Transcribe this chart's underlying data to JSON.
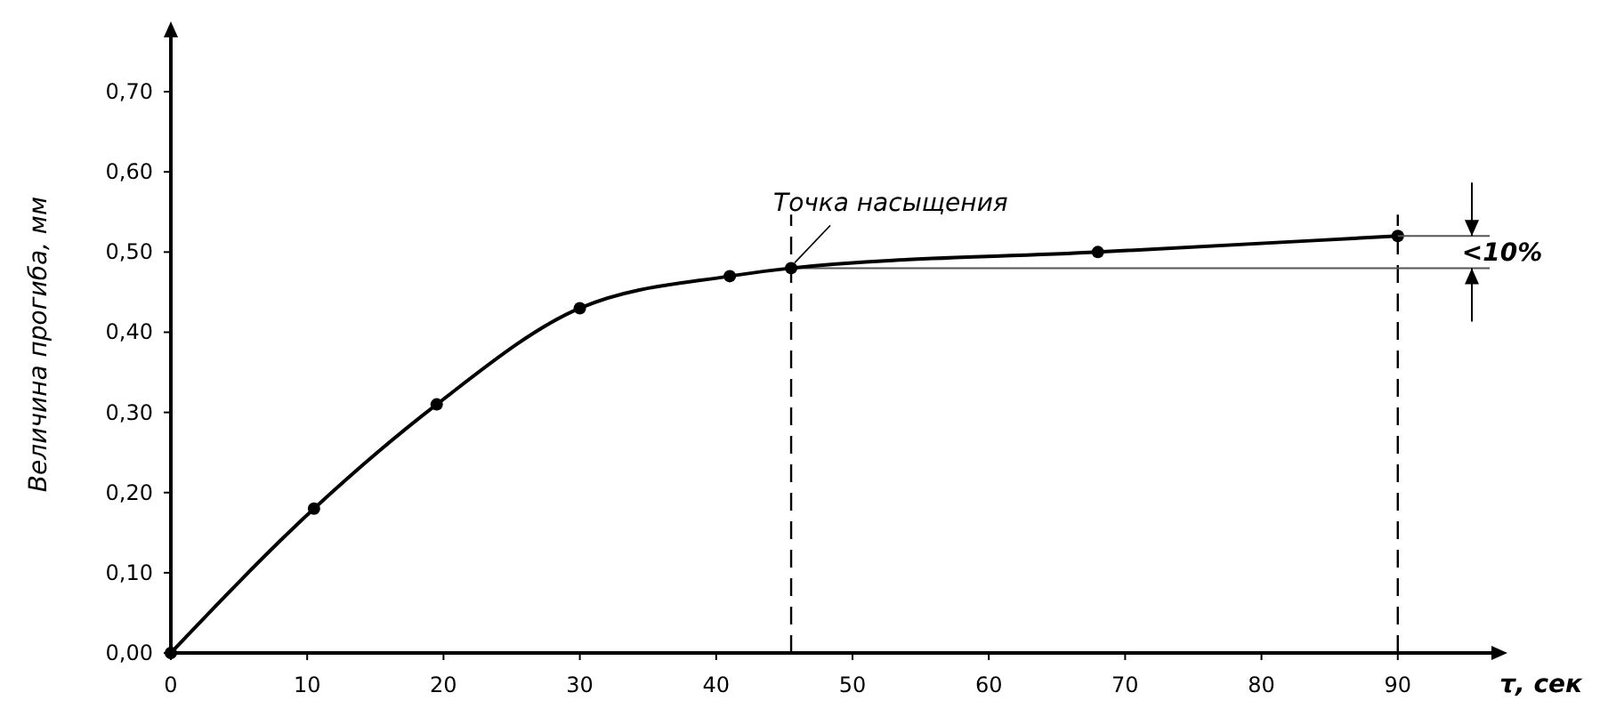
{
  "chart_data": {
    "type": "line",
    "xlabel": "τ, сек",
    "ylabel": "Величина прогиба, мм",
    "x": [
      0,
      10.5,
      19.5,
      30,
      41,
      45.5,
      68,
      90
    ],
    "series": [
      {
        "color": "#000000",
        "values": [
          0,
          0.18,
          0.31,
          0.43,
          0.47,
          0.48,
          0.5,
          0.52
        ]
      }
    ],
    "xlim": [
      0,
      97
    ],
    "xticks": [
      0,
      10,
      20,
      30,
      40,
      50,
      60,
      70,
      80,
      90
    ],
    "ylim": [
      0,
      0.77
    ],
    "yticks": [
      {
        "value": 0,
        "label": "0,00"
      },
      {
        "value": 0.1,
        "label": "0,10"
      },
      {
        "value": 0.2,
        "label": "0,20"
      },
      {
        "value": 0.3,
        "label": "0,30"
      },
      {
        "value": 0.4,
        "label": "0,40"
      },
      {
        "value": 0.5,
        "label": "0,50"
      },
      {
        "value": 0.6,
        "label": "0,60"
      },
      {
        "value": 0.7,
        "label": "0,70"
      }
    ],
    "grid": false,
    "marker": "circle",
    "line_style": "solid",
    "ref_lines": [
      {
        "axis": "x",
        "value": 45.5,
        "line_style": "dashed",
        "color": "#000000"
      },
      {
        "axis": "x",
        "value": 90,
        "line_style": "dashed",
        "color": "#000000"
      },
      {
        "axis": "y",
        "value": 0.48,
        "line_style": "solid",
        "color": "#555555"
      }
    ],
    "annotations": [
      {
        "text": "Точка насыщения",
        "x": 45.5,
        "y": 0.48
      },
      {
        "text": "<10%",
        "x": 90,
        "y": 0.5
      }
    ]
  }
}
